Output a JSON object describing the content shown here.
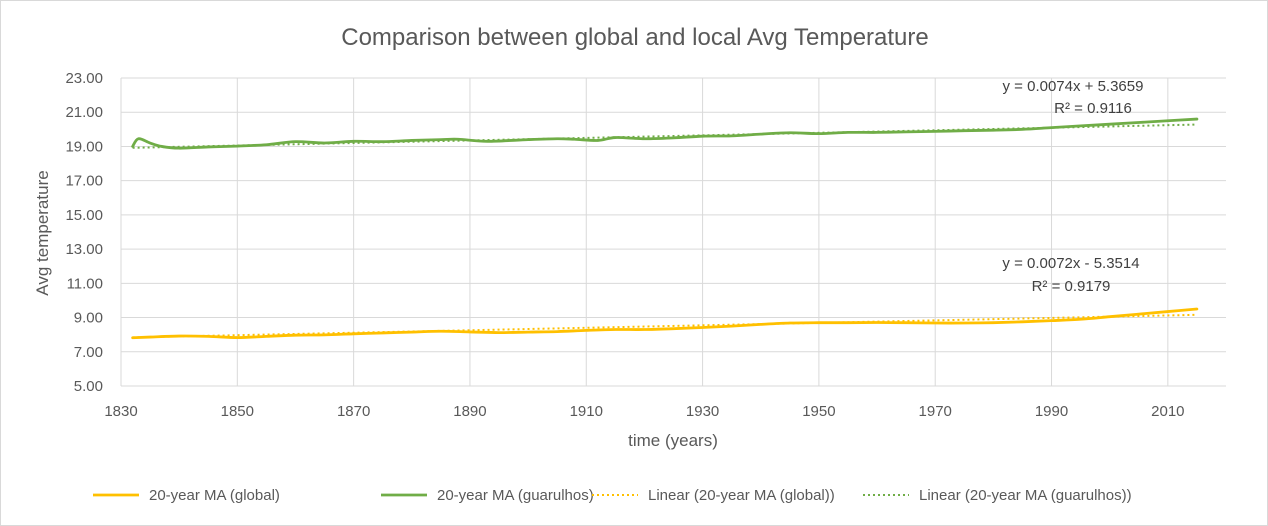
{
  "chart_data": {
    "type": "line",
    "title": "Comparison between global and local Avg Temperature",
    "xlabel": "time (years)",
    "ylabel": "Avg temperature",
    "xlim": [
      1830,
      2020
    ],
    "ylim": [
      5,
      23
    ],
    "x_ticks": [
      "1830",
      "1850",
      "1870",
      "1890",
      "1910",
      "1930",
      "1950",
      "1970",
      "1990",
      "2010"
    ],
    "y_ticks": [
      "5.00",
      "7.00",
      "9.00",
      "11.00",
      "13.00",
      "15.00",
      "17.00",
      "19.00",
      "21.00",
      "23.00"
    ],
    "grid": "vertical and horizontal",
    "legend_position": "bottom",
    "colors": {
      "global": "#FFC000",
      "guarulhos": "#70AD47",
      "grid": "#d9d9d9",
      "text": "#595959"
    },
    "series": [
      {
        "name": "20-year MA (global)",
        "style": "solid",
        "x": [
          1832,
          1835,
          1840,
          1845,
          1850,
          1855,
          1860,
          1865,
          1870,
          1875,
          1880,
          1885,
          1890,
          1895,
          1900,
          1905,
          1910,
          1915,
          1920,
          1925,
          1930,
          1935,
          1940,
          1945,
          1950,
          1955,
          1960,
          1965,
          1970,
          1975,
          1980,
          1985,
          1990,
          1995,
          2000,
          2005,
          2010,
          2015
        ],
        "y": [
          7.82,
          7.86,
          7.92,
          7.9,
          7.83,
          7.9,
          7.97,
          7.99,
          8.05,
          8.1,
          8.15,
          8.2,
          8.16,
          8.12,
          8.15,
          8.18,
          8.25,
          8.3,
          8.3,
          8.35,
          8.42,
          8.5,
          8.6,
          8.68,
          8.7,
          8.7,
          8.71,
          8.7,
          8.68,
          8.68,
          8.7,
          8.75,
          8.82,
          8.9,
          9.05,
          9.2,
          9.35,
          9.5
        ]
      },
      {
        "name": "20-year MA (guarulhos)",
        "style": "solid",
        "x": [
          1832,
          1833,
          1835,
          1837,
          1840,
          1845,
          1850,
          1855,
          1860,
          1865,
          1870,
          1875,
          1880,
          1885,
          1888,
          1893,
          1900,
          1905,
          1908,
          1912,
          1915,
          1920,
          1925,
          1930,
          1935,
          1940,
          1945,
          1950,
          1955,
          1960,
          1965,
          1970,
          1975,
          1980,
          1985,
          1990,
          1995,
          2000,
          2005,
          2010,
          2015
        ],
        "y": [
          19.0,
          19.45,
          19.2,
          19.0,
          18.9,
          18.97,
          19.02,
          19.1,
          19.28,
          19.2,
          19.3,
          19.28,
          19.35,
          19.4,
          19.42,
          19.3,
          19.4,
          19.45,
          19.42,
          19.35,
          19.52,
          19.45,
          19.5,
          19.6,
          19.62,
          19.72,
          19.8,
          19.75,
          19.82,
          19.82,
          19.85,
          19.88,
          19.92,
          19.95,
          20.0,
          20.1,
          20.2,
          20.3,
          20.4,
          20.5,
          20.6
        ]
      },
      {
        "name": "Linear (20-year MA (global))",
        "style": "dotted",
        "x": [
          1832,
          2015
        ],
        "y": [
          7.84,
          9.16
        ]
      },
      {
        "name": "Linear (20-year MA (guarulhos))",
        "style": "dotted",
        "x": [
          1832,
          2015
        ],
        "y": [
          18.92,
          20.28
        ]
      }
    ],
    "annotations": [
      {
        "series": "guarulhos",
        "equation": "y = 0.0074x + 5.3659",
        "r2": "R² = 0.9116"
      },
      {
        "series": "global",
        "equation": "y = 0.0072x - 5.3514",
        "r2": "R² = 0.9179"
      }
    ]
  }
}
